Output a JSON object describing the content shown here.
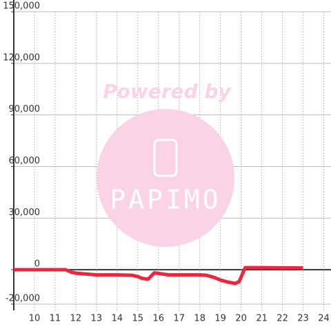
{
  "chart_data": {
    "type": "line",
    "x": [
      9,
      11.5,
      11.8,
      12,
      12.5,
      13,
      14,
      14.7,
      15,
      15.2,
      15.5,
      15.8,
      16.5,
      17,
      18,
      18.3,
      18.7,
      19,
      19.3,
      19.7,
      19.9,
      20.2,
      21,
      23
    ],
    "series": [
      {
        "color": "#e8283c",
        "values": [
          0,
          0,
          -1500,
          -2000,
          -2500,
          -3000,
          -3000,
          -3200,
          -4000,
          -5000,
          -5500,
          -1800,
          -3000,
          -3000,
          -3000,
          -3200,
          -4500,
          -6000,
          -7000,
          -8000,
          -7000,
          1200,
          1200,
          1000
        ]
      }
    ],
    "xlim": [
      9,
      24.35
    ],
    "xticks": [
      10,
      11,
      12,
      13,
      14,
      15,
      16,
      17,
      18,
      19,
      20,
      21,
      22,
      23,
      24
    ],
    "ylim": [
      -20000,
      150000
    ],
    "yticks": [
      {
        "value": -20000,
        "label": "-20,000"
      },
      0,
      {
        "value": 30000,
        "label": "30,000"
      },
      {
        "value": 60000,
        "label": "60,000"
      },
      {
        "value": 90000,
        "label": "90,000"
      },
      {
        "value": 120000,
        "label": "120,000"
      },
      {
        "value": 150000,
        "label": "150,000"
      }
    ],
    "grid": true,
    "watermark": {
      "line1": "Powered by",
      "line2": "PAPIMO"
    }
  }
}
